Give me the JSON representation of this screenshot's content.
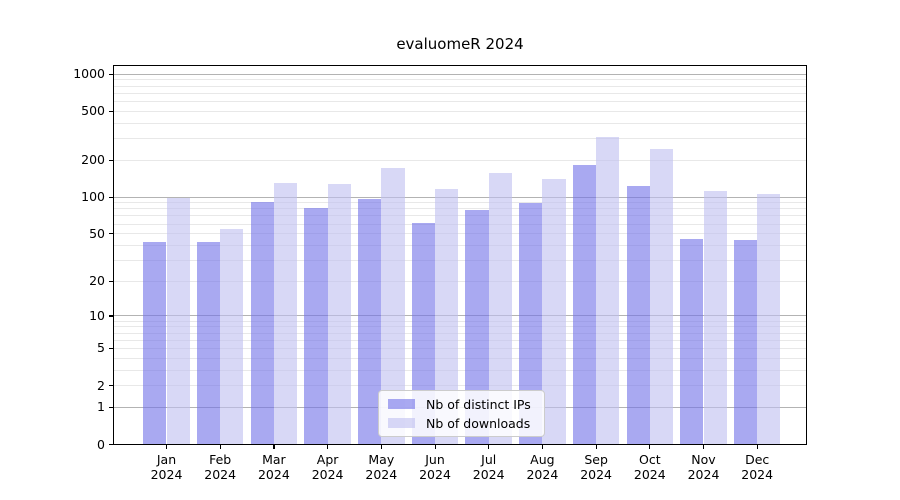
{
  "title": "evaluomeR 2024",
  "chart_data": {
    "type": "bar",
    "title": "evaluomeR 2024",
    "categories": [
      "Jan",
      "Feb",
      "Mar",
      "Apr",
      "May",
      "Jun",
      "Jul",
      "Aug",
      "Sep",
      "Oct",
      "Nov",
      "Dec"
    ],
    "category_sublabel": "2024",
    "series": [
      {
        "name": "Nb of distinct IPs",
        "color": "#7070e8",
        "values": [
          43,
          43,
          91,
          82,
          97,
          61,
          79,
          90,
          183,
          124,
          45,
          44
        ]
      },
      {
        "name": "Nb of downloads",
        "color": "#bebef0",
        "values": [
          98,
          55,
          130,
          127,
          173,
          116,
          157,
          141,
          310,
          245,
          113,
          105
        ]
      }
    ],
    "fill_alpha": 0.6,
    "yaxis": {
      "scale": "log1p",
      "ticks": [
        0,
        1,
        2,
        5,
        10,
        20,
        50,
        100,
        200,
        500,
        1000
      ],
      "ylim": [
        0,
        1185
      ],
      "major_grid_color": "#b3b3b3",
      "minor_grid_color": "#e8e8e8"
    },
    "legend_position": "lower center",
    "grid": true
  }
}
